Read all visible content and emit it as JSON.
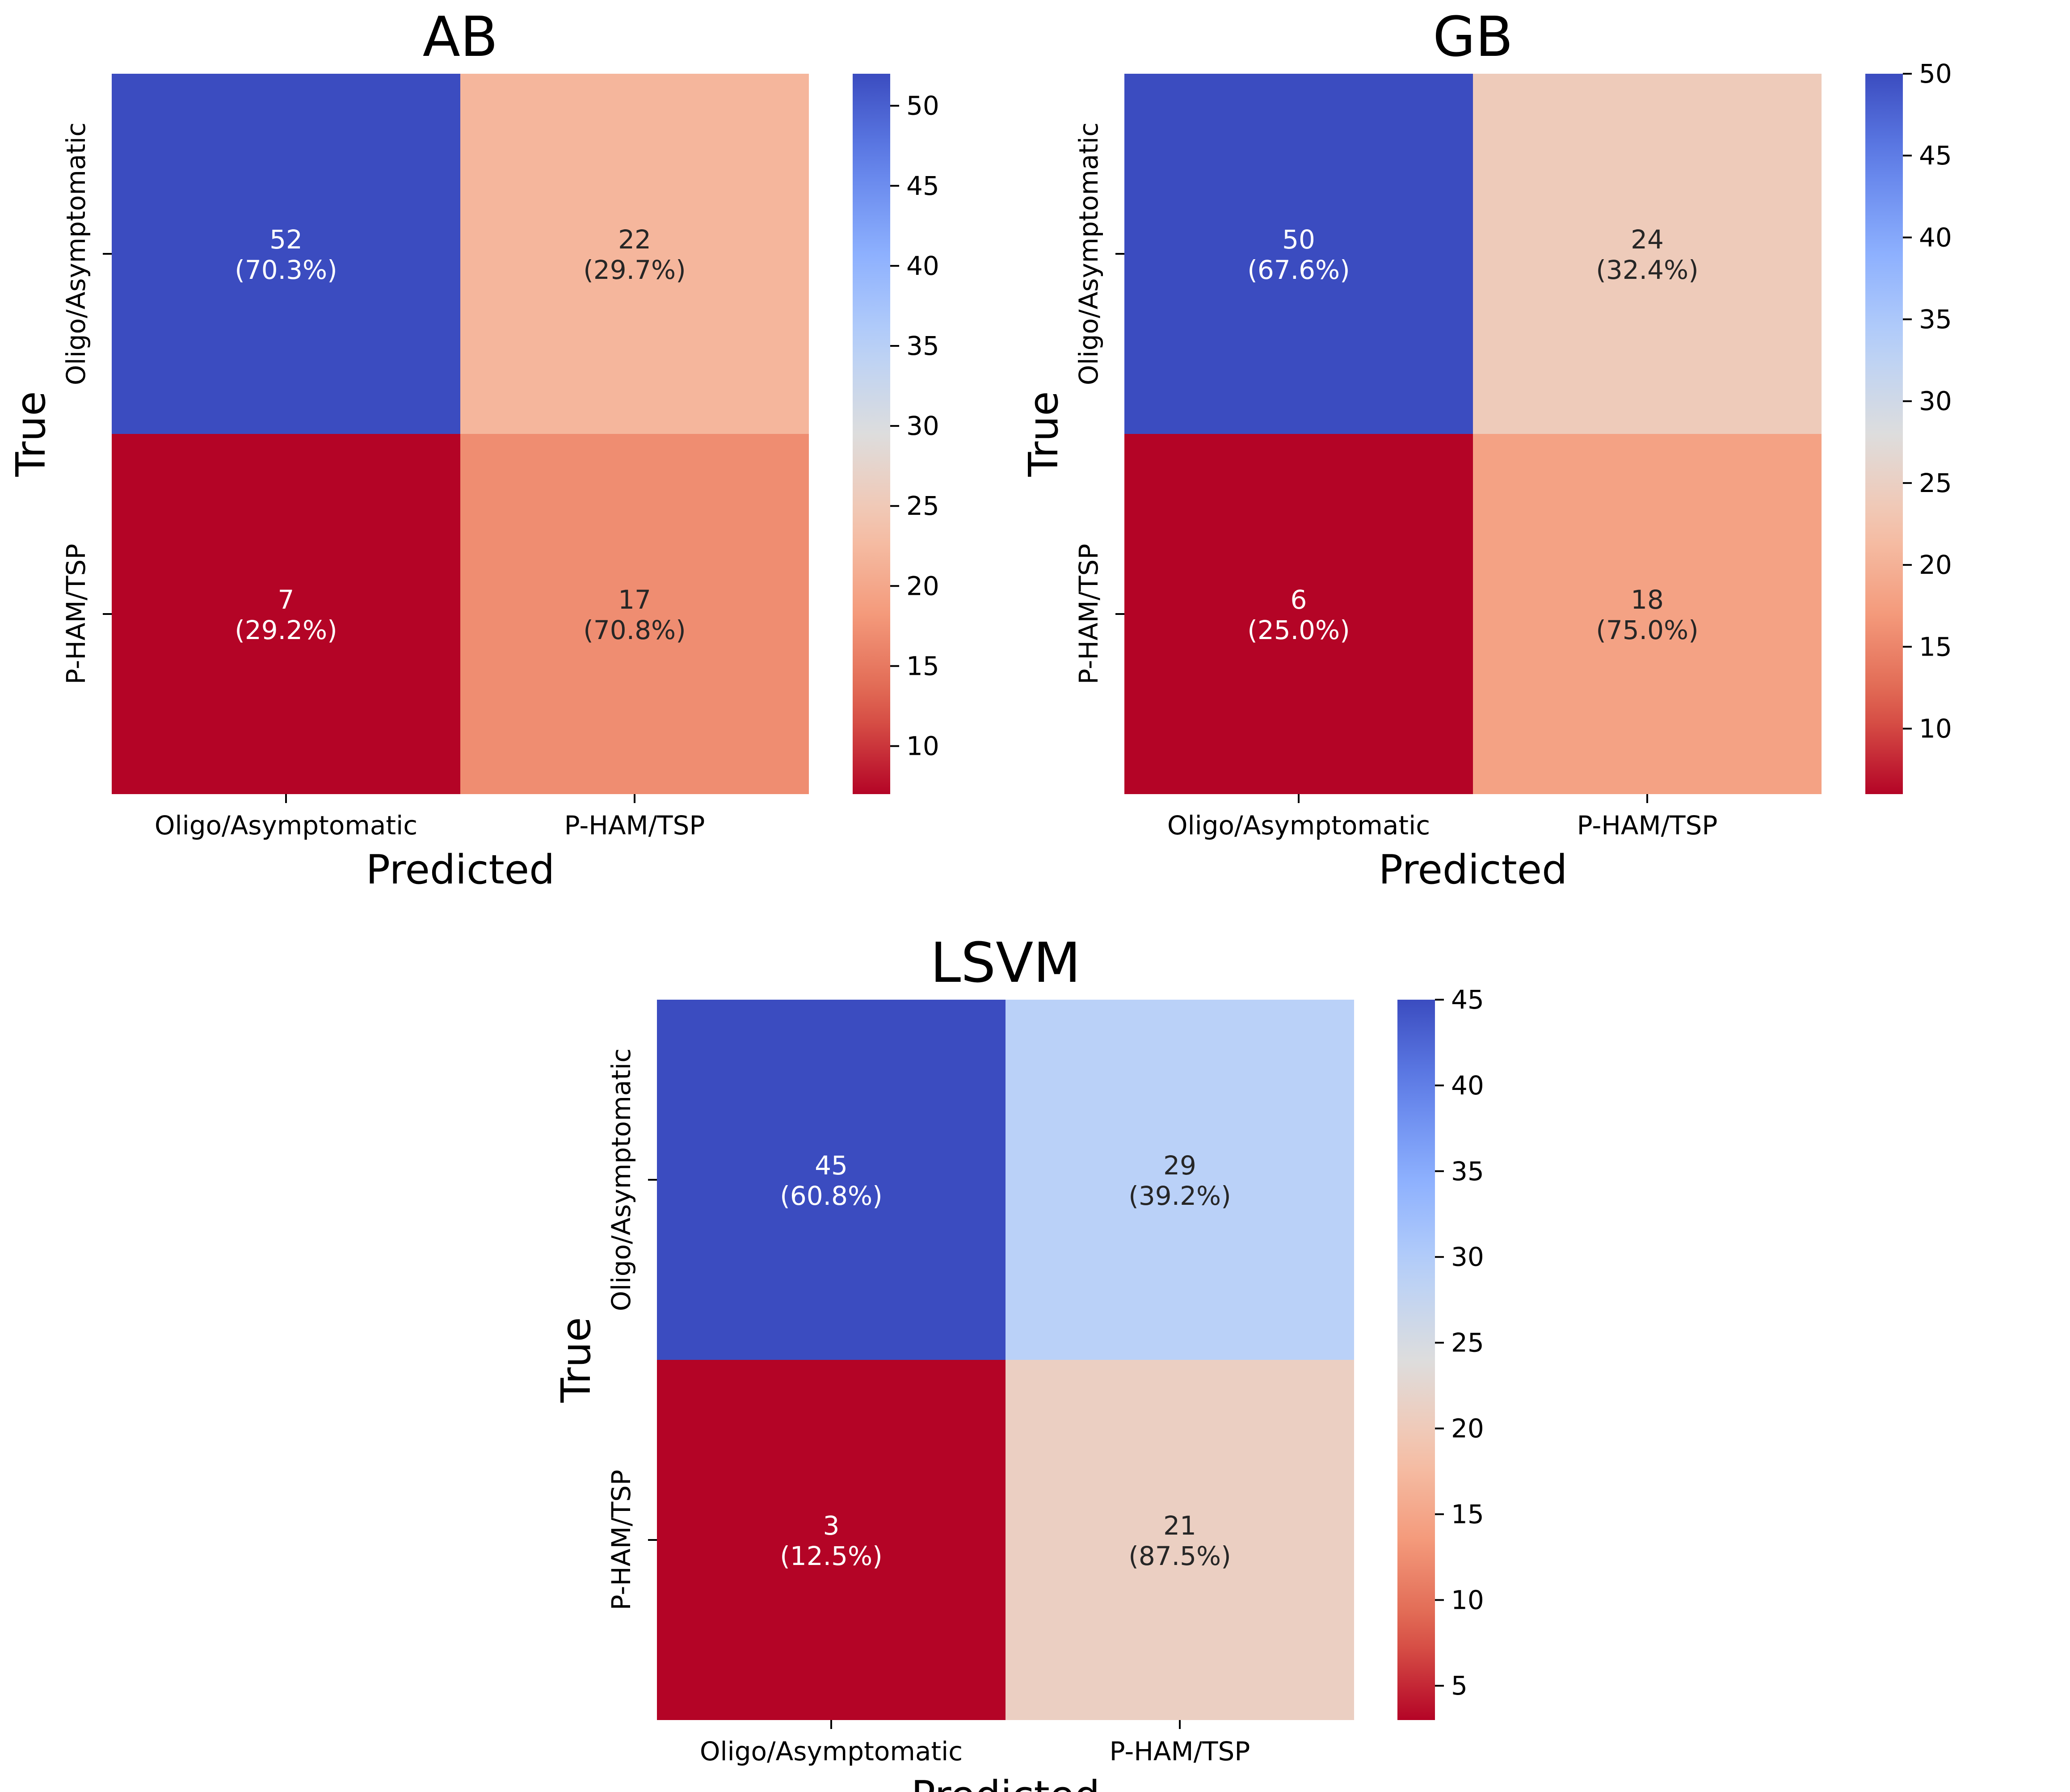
{
  "chart_data": [
    {
      "type": "heatmap",
      "title": "AB",
      "xlabel": "Predicted",
      "ylabel": "True",
      "x_categories": [
        "Oligo/Asymptomatic",
        "P-HAM/TSP"
      ],
      "y_categories": [
        "Oligo/Asymptomatic",
        "P-HAM/TSP"
      ],
      "values": [
        [
          52,
          22
        ],
        [
          7,
          17
        ]
      ],
      "cell_labels": [
        [
          "52",
          "22"
        ],
        [
          "7",
          "17"
        ]
      ],
      "cell_percent_labels": [
        [
          "(70.3%)",
          "(29.7%)"
        ],
        [
          "(29.2%)",
          "(70.8%)"
        ]
      ],
      "colormap": "coolwarm_r",
      "colorbar_range": [
        7,
        52
      ],
      "colorbar_ticks": [
        10,
        15,
        20,
        25,
        30,
        35,
        40,
        45,
        50
      ],
      "colorbar_tick_labels": [
        "10",
        "15",
        "20",
        "25",
        "30",
        "35",
        "40",
        "45",
        "50"
      ]
    },
    {
      "type": "heatmap",
      "title": "GB",
      "xlabel": "Predicted",
      "ylabel": "True",
      "x_categories": [
        "Oligo/Asymptomatic",
        "P-HAM/TSP"
      ],
      "y_categories": [
        "Oligo/Asymptomatic",
        "P-HAM/TSP"
      ],
      "values": [
        [
          50,
          24
        ],
        [
          6,
          18
        ]
      ],
      "cell_labels": [
        [
          "50",
          "24"
        ],
        [
          "6",
          "18"
        ]
      ],
      "cell_percent_labels": [
        [
          "(67.6%)",
          "(32.4%)"
        ],
        [
          "(25.0%)",
          "(75.0%)"
        ]
      ],
      "colormap": "coolwarm_r",
      "colorbar_range": [
        6,
        50
      ],
      "colorbar_ticks": [
        10,
        15,
        20,
        25,
        30,
        35,
        40,
        45,
        50
      ],
      "colorbar_tick_labels": [
        "10",
        "15",
        "20",
        "25",
        "30",
        "35",
        "40",
        "45",
        "50"
      ]
    },
    {
      "type": "heatmap",
      "title": "LSVM",
      "xlabel": "Predicted",
      "ylabel": "True",
      "x_categories": [
        "Oligo/Asymptomatic",
        "P-HAM/TSP"
      ],
      "y_categories": [
        "Oligo/Asymptomatic",
        "P-HAM/TSP"
      ],
      "values": [
        [
          45,
          29
        ],
        [
          3,
          21
        ]
      ],
      "cell_labels": [
        [
          "45",
          "29"
        ],
        [
          "3",
          "21"
        ]
      ],
      "cell_percent_labels": [
        [
          "(60.8%)",
          "(39.2%)"
        ],
        [
          "(12.5%)",
          "(87.5%)"
        ]
      ],
      "colormap": "coolwarm_r",
      "colorbar_range": [
        3,
        45
      ],
      "colorbar_ticks": [
        5,
        10,
        15,
        20,
        25,
        30,
        35,
        40,
        45
      ],
      "colorbar_tick_labels": [
        "5",
        "10",
        "15",
        "20",
        "25",
        "30",
        "35",
        "40",
        "45"
      ]
    }
  ]
}
